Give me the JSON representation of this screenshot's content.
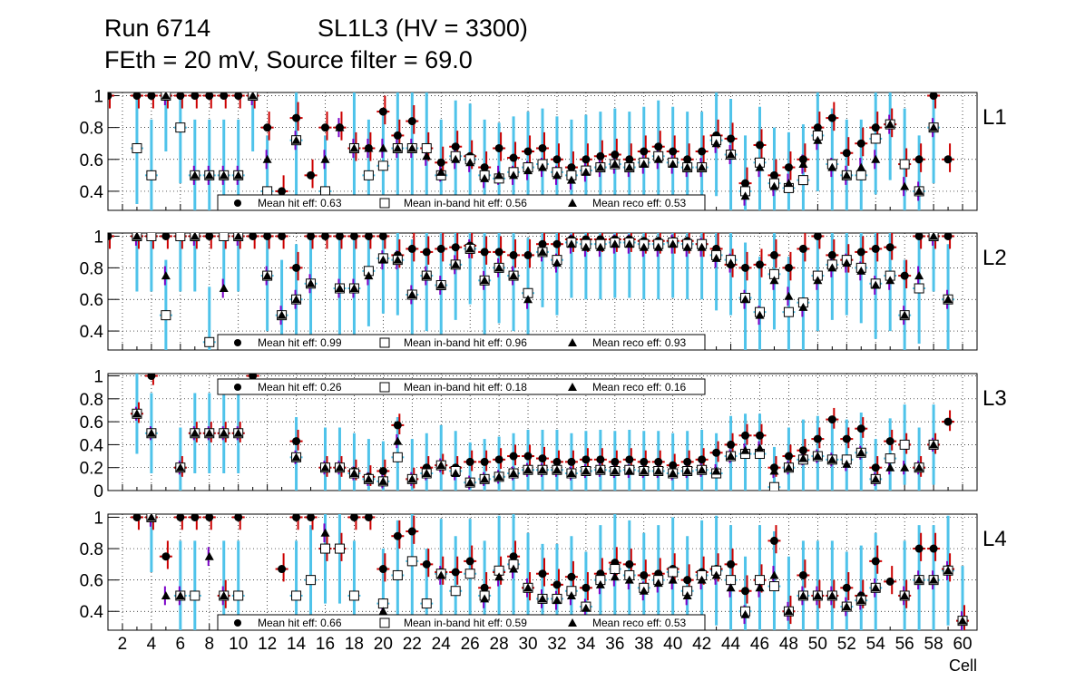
{
  "header": {
    "run": "Run 6714",
    "chamber": "SL1L3 (HV = 3300)",
    "settings": "FEth = 20 mV, Source filter = 69.0"
  },
  "chart_data": {
    "type": "scatter",
    "xlabel": "Cell",
    "xlim": [
      1,
      61
    ],
    "x_tick_labels": [
      "2",
      "4",
      "6",
      "8",
      "10",
      "12",
      "14",
      "16",
      "18",
      "20",
      "22",
      "24",
      "26",
      "28",
      "30",
      "32",
      "34",
      "36",
      "38",
      "40",
      "42",
      "44",
      "46",
      "48",
      "50",
      "52",
      "54",
      "56",
      "58",
      "60"
    ],
    "series_names": [
      "Mean hit eff",
      "Mean in-band hit eff",
      "Mean reco eff"
    ],
    "colors": {
      "hit_marker": "#000000",
      "inband_fill": "#ffffff",
      "reco_marker": "#000000",
      "error_hit": "#cc0000",
      "error_inband": "#4fc3ea",
      "error_reco": "#7b00c8"
    },
    "panels": [
      {
        "label": "L1",
        "ylim": [
          0.28,
          1.02
        ],
        "yticks": [
          0.4,
          0.6,
          0.8,
          1
        ],
        "legend": {
          "hit": "Mean hit  eff: 0.63",
          "inband": "Mean in-band hit eff: 0.56",
          "reco": "Mean reco eff: 0.53"
        },
        "cells": [
          1,
          3,
          4,
          5,
          6,
          7,
          8,
          9,
          10,
          11,
          12,
          13,
          14,
          15,
          16,
          17,
          18,
          19,
          20,
          21,
          22,
          23,
          24,
          25,
          26,
          27,
          28,
          29,
          30,
          31,
          32,
          33,
          34,
          35,
          36,
          37,
          38,
          39,
          40,
          41,
          42,
          43,
          44,
          45,
          46,
          47,
          48,
          49,
          50,
          51,
          52,
          53,
          54,
          55,
          56,
          57,
          58,
          59
        ],
        "hit": [
          1,
          1,
          1,
          1,
          1,
          1,
          1,
          1,
          1,
          1,
          0.8,
          0.4,
          0.86,
          0.5,
          0.8,
          0.8,
          0.67,
          0.67,
          0.9,
          0.75,
          0.84,
          0.67,
          0.58,
          0.68,
          0.62,
          0.55,
          0.67,
          0.61,
          0.65,
          0.67,
          0.6,
          0.55,
          0.6,
          0.62,
          0.63,
          0.6,
          0.65,
          0.68,
          0.65,
          0.6,
          0.65,
          0.75,
          0.73,
          0.45,
          0.69,
          0.5,
          0.55,
          0.6,
          0.8,
          0.86,
          0.64,
          0.7,
          0.8,
          0.82,
          0.57,
          0.6,
          1,
          0.6
        ],
        "inband": [
          null,
          0.67,
          0.5,
          1,
          0.8,
          0.5,
          0.5,
          0.5,
          0.5,
          1,
          0.4,
          null,
          0.72,
          null,
          0.4,
          null,
          0.67,
          0.5,
          0.56,
          0.67,
          0.67,
          0.67,
          0.5,
          0.62,
          0.6,
          0.5,
          0.48,
          0.52,
          0.55,
          0.57,
          0.52,
          0.5,
          0.53,
          0.55,
          0.57,
          0.55,
          0.58,
          0.62,
          0.58,
          0.55,
          0.55,
          0.72,
          0.63,
          0.4,
          0.58,
          0.45,
          0.42,
          0.47,
          0.75,
          0.57,
          0.5,
          0.5,
          0.73,
          0.82,
          0.57,
          0.4,
          0.8,
          null
        ],
        "reco": [
          null,
          null,
          null,
          1,
          null,
          0.5,
          0.5,
          0.5,
          0.5,
          1,
          0.6,
          null,
          0.72,
          null,
          0.6,
          0.8,
          0.67,
          0.67,
          0.67,
          0.67,
          0.67,
          0.62,
          0.52,
          0.6,
          0.58,
          0.48,
          0.5,
          0.5,
          0.53,
          0.55,
          0.5,
          0.47,
          0.52,
          0.55,
          0.57,
          0.55,
          0.57,
          0.6,
          0.57,
          0.55,
          0.55,
          0.7,
          0.63,
          0.37,
          0.55,
          0.43,
          0.45,
          0.57,
          0.72,
          0.55,
          0.5,
          0.55,
          0.6,
          0.82,
          0.43,
          0.4,
          0.8,
          null
        ]
      },
      {
        "label": "L2",
        "ylim": [
          0.28,
          1.02
        ],
        "yticks": [
          0.4,
          0.6,
          0.8,
          1
        ],
        "legend": {
          "hit": "Mean hit  eff: 0.99",
          "inband": "Mean in-band hit eff: 0.96",
          "reco": "Mean reco eff: 0.93"
        },
        "cells": [
          1,
          3,
          4,
          5,
          6,
          7,
          8,
          9,
          10,
          11,
          12,
          13,
          14,
          15,
          16,
          17,
          18,
          19,
          20,
          21,
          22,
          23,
          24,
          25,
          26,
          27,
          28,
          29,
          30,
          31,
          32,
          33,
          34,
          35,
          36,
          37,
          38,
          39,
          40,
          41,
          42,
          43,
          44,
          45,
          46,
          47,
          48,
          49,
          50,
          51,
          52,
          53,
          54,
          55,
          56,
          57,
          58,
          59
        ],
        "hit": [
          1,
          1,
          1,
          1,
          1,
          1,
          1,
          1,
          1,
          1,
          1,
          1,
          0.8,
          1,
          1,
          1,
          1,
          1,
          1,
          0.88,
          0.92,
          0.9,
          0.92,
          0.93,
          0.94,
          0.9,
          0.9,
          0.88,
          0.88,
          0.95,
          0.95,
          0.98,
          0.98,
          0.98,
          0.98,
          0.98,
          0.97,
          0.97,
          0.97,
          0.97,
          0.95,
          0.92,
          0.82,
          0.8,
          0.82,
          0.88,
          0.8,
          0.92,
          1,
          0.88,
          0.85,
          0.9,
          0.92,
          0.93,
          0.75,
          1,
          1,
          1
        ],
        "inband": [
          null,
          1,
          1,
          0.5,
          1,
          1,
          0.33,
          1,
          1,
          null,
          0.75,
          0.5,
          0.6,
          0.7,
          null,
          0.67,
          0.67,
          0.78,
          0.86,
          0.85,
          0.63,
          0.75,
          0.69,
          0.82,
          0.92,
          0.72,
          0.8,
          0.75,
          0.64,
          0.9,
          0.85,
          0.96,
          0.95,
          0.95,
          0.96,
          0.96,
          0.95,
          0.95,
          0.96,
          0.95,
          0.95,
          0.88,
          0.85,
          0.61,
          0.52,
          0.76,
          0.52,
          0.58,
          0.75,
          0.82,
          0.85,
          0.8,
          0.7,
          0.75,
          0.5,
          0.67,
          1,
          0.6
        ],
        "reco": [
          null,
          1,
          null,
          0.75,
          null,
          1,
          null,
          0.67,
          1,
          null,
          0.75,
          0.5,
          0.6,
          0.7,
          null,
          0.67,
          0.67,
          0.75,
          0.85,
          0.85,
          0.63,
          0.75,
          0.69,
          0.82,
          0.92,
          0.72,
          0.8,
          0.75,
          0.6,
          0.9,
          0.83,
          0.95,
          0.93,
          0.93,
          0.95,
          0.95,
          0.93,
          0.93,
          0.95,
          0.93,
          0.93,
          0.86,
          0.83,
          0.6,
          0.5,
          0.72,
          0.62,
          0.55,
          0.72,
          0.8,
          0.83,
          0.78,
          0.69,
          0.72,
          0.5,
          0.75,
          1,
          0.6
        ]
      },
      {
        "label": "L3",
        "ylim": [
          0,
          1.02
        ],
        "yticks": [
          0,
          0.2,
          0.4,
          0.6,
          0.8,
          1
        ],
        "legend": {
          "hit": "Mean hit  eff: 0.26",
          "inband": "Mean in-band hit eff: 0.18",
          "reco": "Mean reco eff: 0.16"
        },
        "cells": [
          3,
          4,
          6,
          7,
          8,
          9,
          10,
          11,
          14,
          16,
          17,
          18,
          19,
          20,
          21,
          22,
          23,
          24,
          25,
          26,
          27,
          28,
          29,
          30,
          31,
          32,
          33,
          34,
          35,
          36,
          37,
          38,
          39,
          40,
          41,
          42,
          43,
          44,
          45,
          46,
          47,
          48,
          49,
          50,
          51,
          52,
          53,
          54,
          55,
          56,
          57,
          58,
          59
        ],
        "hit": [
          0.67,
          1,
          0.2,
          0.5,
          0.5,
          0.5,
          0.5,
          1,
          0.43,
          0.2,
          0.2,
          0.17,
          0.12,
          0.17,
          0.57,
          0.1,
          0.2,
          0.22,
          0.2,
          0.25,
          0.25,
          0.27,
          0.3,
          0.3,
          0.28,
          0.25,
          0.25,
          0.27,
          0.27,
          0.25,
          0.27,
          0.25,
          0.25,
          0.22,
          0.25,
          0.27,
          0.33,
          0.4,
          0.48,
          0.48,
          0.2,
          0.3,
          0.35,
          0.45,
          0.62,
          0.45,
          0.54,
          0.2,
          0.43,
          0.4,
          0.2,
          0.4,
          0.6
        ],
        "inband": [
          0.67,
          0.5,
          0.2,
          0.5,
          0.5,
          0.5,
          0.5,
          null,
          0.29,
          0.2,
          0.2,
          0.15,
          0.1,
          0.08,
          0.29,
          0.1,
          0.15,
          0.22,
          0.17,
          0.07,
          0.1,
          0.12,
          0.15,
          0.18,
          0.18,
          0.18,
          0.15,
          0.17,
          0.18,
          0.17,
          0.18,
          0.17,
          0.17,
          0.15,
          0.17,
          0.18,
          0.15,
          0.3,
          0.32,
          0.32,
          0.03,
          0.2,
          0.27,
          0.3,
          0.27,
          0.27,
          0.33,
          0.1,
          0.28,
          0.4,
          0.2,
          0.4,
          null
        ],
        "reco": [
          0.67,
          0.5,
          0.2,
          0.5,
          0.5,
          0.5,
          0.5,
          null,
          0.29,
          0.2,
          0.2,
          0.15,
          0.1,
          0.08,
          0.43,
          0.1,
          0.15,
          0.22,
          0.15,
          0.07,
          0.1,
          0.12,
          0.15,
          0.18,
          0.18,
          0.18,
          0.15,
          0.17,
          0.18,
          0.17,
          0.17,
          0.17,
          0.17,
          0.15,
          0.17,
          0.18,
          0.17,
          0.3,
          0.35,
          0.37,
          0.17,
          0.2,
          0.28,
          0.3,
          0.27,
          0.23,
          0.33,
          0.1,
          0.2,
          0.2,
          0.2,
          0.4,
          null
        ]
      },
      {
        "label": "L4",
        "ylim": [
          0.28,
          1.02
        ],
        "yticks": [
          0.4,
          0.6,
          0.8,
          1
        ],
        "legend": {
          "hit": "Mean hit  eff: 0.66",
          "inband": "Mean in-band hit eff: 0.59",
          "reco": "Mean reco eff: 0.53"
        },
        "cells": [
          3,
          4,
          5,
          6,
          7,
          8,
          9,
          10,
          11,
          13,
          14,
          15,
          16,
          17,
          18,
          19,
          20,
          21,
          22,
          23,
          24,
          25,
          26,
          27,
          28,
          29,
          30,
          31,
          32,
          33,
          34,
          35,
          36,
          37,
          38,
          39,
          40,
          41,
          42,
          43,
          44,
          45,
          46,
          47,
          48,
          49,
          50,
          51,
          52,
          53,
          54,
          55,
          56,
          57,
          58,
          59,
          60
        ],
        "hit": [
          1,
          1,
          0.75,
          1,
          1,
          1,
          0.5,
          1,
          null,
          0.67,
          1,
          1,
          0.8,
          0.8,
          1,
          1,
          0.67,
          0.88,
          0.91,
          0.7,
          0.65,
          0.65,
          0.72,
          0.55,
          0.65,
          0.75,
          0.55,
          0.64,
          0.57,
          0.62,
          0.55,
          0.64,
          0.71,
          0.7,
          0.63,
          0.64,
          0.67,
          0.6,
          0.65,
          0.67,
          0.7,
          0.53,
          0.6,
          0.85,
          0.4,
          0.63,
          0.5,
          0.5,
          0.55,
          0.5,
          0.72,
          0.59,
          0.5,
          0.8,
          0.8,
          0.67,
          0.34
        ],
        "inband": [
          null,
          1,
          null,
          0.5,
          0.5,
          null,
          0.5,
          0.5,
          null,
          null,
          0.5,
          0.6,
          0.8,
          0.8,
          0.5,
          null,
          0.45,
          0.63,
          0.72,
          0.45,
          0.64,
          0.53,
          0.64,
          0.5,
          0.66,
          0.7,
          0.55,
          0.48,
          0.48,
          0.53,
          0.43,
          0.6,
          0.67,
          0.63,
          0.55,
          0.6,
          0.65,
          0.53,
          0.63,
          0.66,
          0.6,
          0.4,
          0.6,
          0.56,
          0.4,
          0.5,
          0.5,
          0.5,
          0.43,
          0.47,
          0.55,
          null,
          0.5,
          0.6,
          0.6,
          0.66,
          0.34
        ],
        "reco": [
          null,
          1,
          0.5,
          0.5,
          null,
          0.75,
          0.5,
          null,
          null,
          null,
          null,
          null,
          0.9,
          null,
          null,
          null,
          0.4,
          null,
          null,
          null,
          0.63,
          null,
          null,
          0.48,
          0.62,
          0.67,
          0.55,
          0.48,
          0.47,
          0.5,
          0.42,
          0.57,
          0.62,
          0.6,
          0.53,
          0.58,
          0.6,
          0.5,
          0.6,
          0.63,
          0.55,
          0.38,
          0.55,
          0.63,
          0.4,
          0.5,
          0.5,
          0.5,
          0.43,
          0.47,
          0.55,
          null,
          0.5,
          0.6,
          0.6,
          0.66,
          0.34
        ]
      }
    ]
  }
}
